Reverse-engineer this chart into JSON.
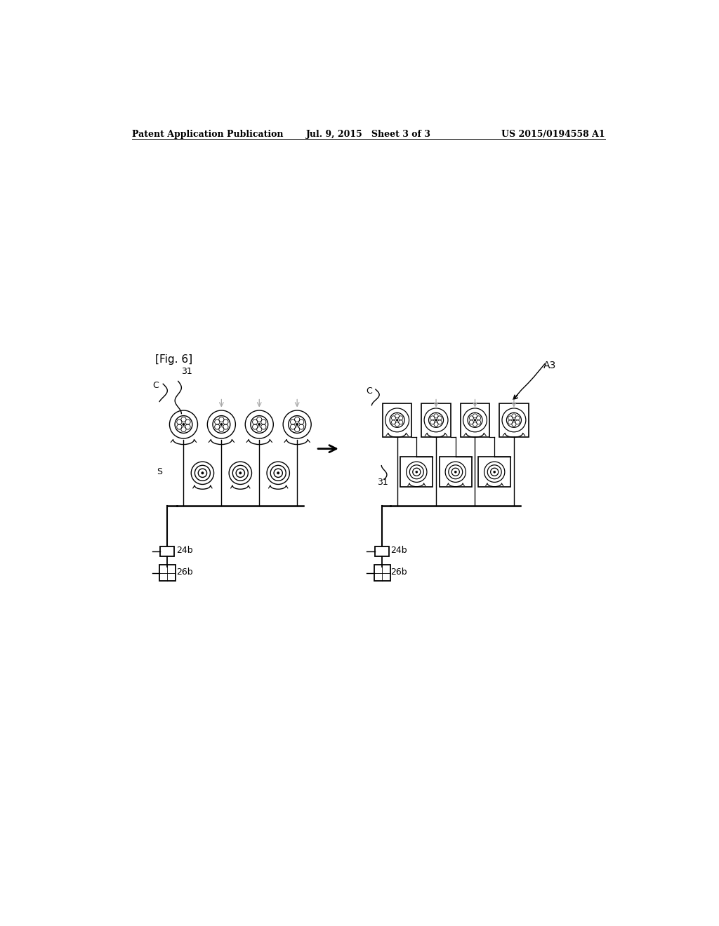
{
  "title_left": "Patent Application Publication",
  "title_mid": "Jul. 9, 2015   Sheet 3 of 3",
  "title_right": "US 2015/0194558 A1",
  "fig_label": "[Fig. 6]",
  "bg_color": "#ffffff",
  "line_color": "#000000",
  "gray_color": "#aaaaaa",
  "label_31_left": "31",
  "label_C_left": "C",
  "label_S_left": "S",
  "label_24b_left": "24b",
  "label_26b_left": "26b",
  "label_C_right": "C",
  "label_31_right": "31",
  "label_24b_right": "24b",
  "label_26b_right": "26b",
  "label_A3": "A3"
}
